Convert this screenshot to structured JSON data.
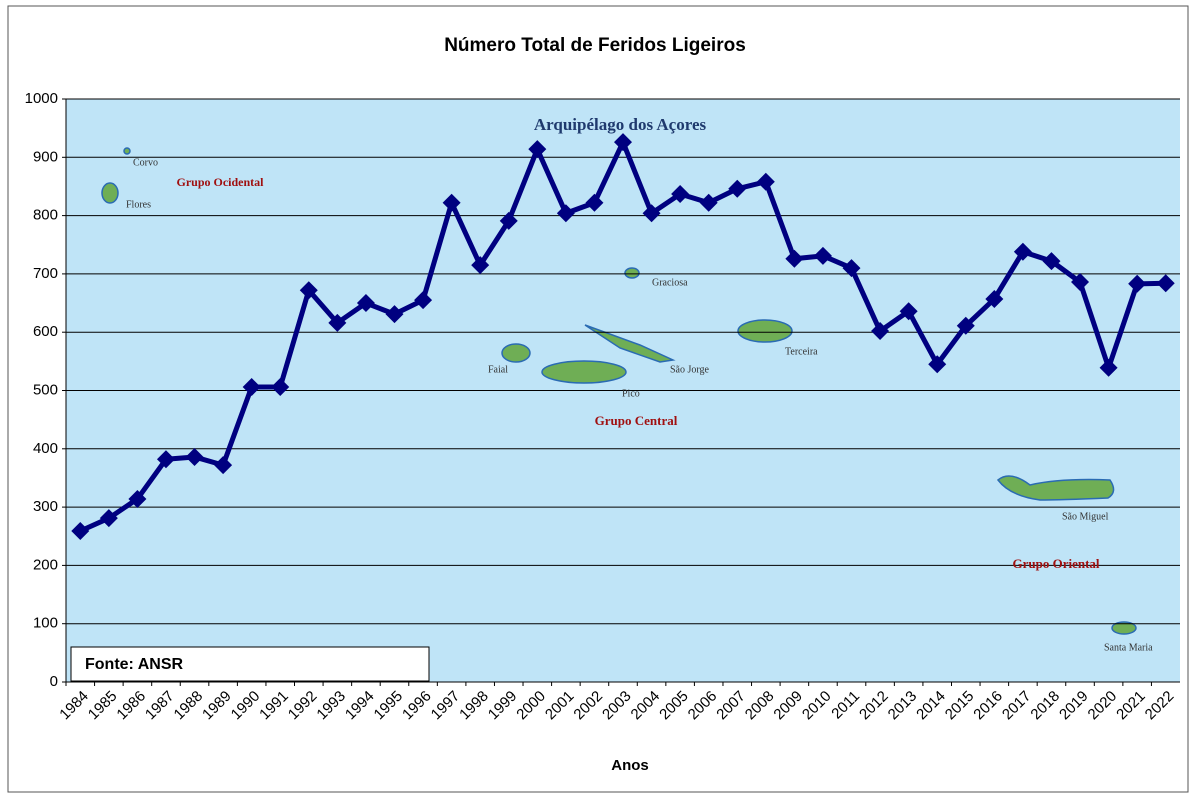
{
  "chart_data": {
    "type": "line",
    "title": "Número Total de Feridos Ligeiros",
    "x_label": "Anos",
    "categories": [
      "1984",
      "1985",
      "1986",
      "1987",
      "1988",
      "1989",
      "1990",
      "1991",
      "1992",
      "1993",
      "1994",
      "1995",
      "1996",
      "1997",
      "1998",
      "1999",
      "2000",
      "2001",
      "2002",
      "2003",
      "2004",
      "2005",
      "2006",
      "2007",
      "2008",
      "2009",
      "2010",
      "2011",
      "2012",
      "2013",
      "2014",
      "2015",
      "2016",
      "2017",
      "2018",
      "2019",
      "2020",
      "2021",
      "2022"
    ],
    "values": [
      259,
      281,
      314,
      382,
      386,
      372,
      506,
      506,
      672,
      616,
      650,
      631,
      655,
      822,
      715,
      791,
      914,
      804,
      822,
      926,
      804,
      837,
      822,
      846,
      858,
      726,
      731,
      710,
      602,
      636,
      545,
      611,
      657,
      738,
      722,
      686,
      539,
      683,
      684
    ],
    "color": "#000080",
    "ylim": [
      0,
      1000
    ],
    "yticks": [
      0,
      100,
      200,
      300,
      400,
      500,
      600,
      700,
      800,
      900,
      1000
    ],
    "grid": true,
    "source": "Fonte: ANSR",
    "annotations": [
      "Arquipélago dos Açores",
      "Corvo",
      "Grupo Ocidental",
      "Flores",
      "Graciosa",
      "Faial",
      "São Jorge",
      "Terceira",
      "Pico",
      "Grupo Central",
      "São Miguel",
      "Grupo Oriental",
      "Santa Maria"
    ]
  }
}
